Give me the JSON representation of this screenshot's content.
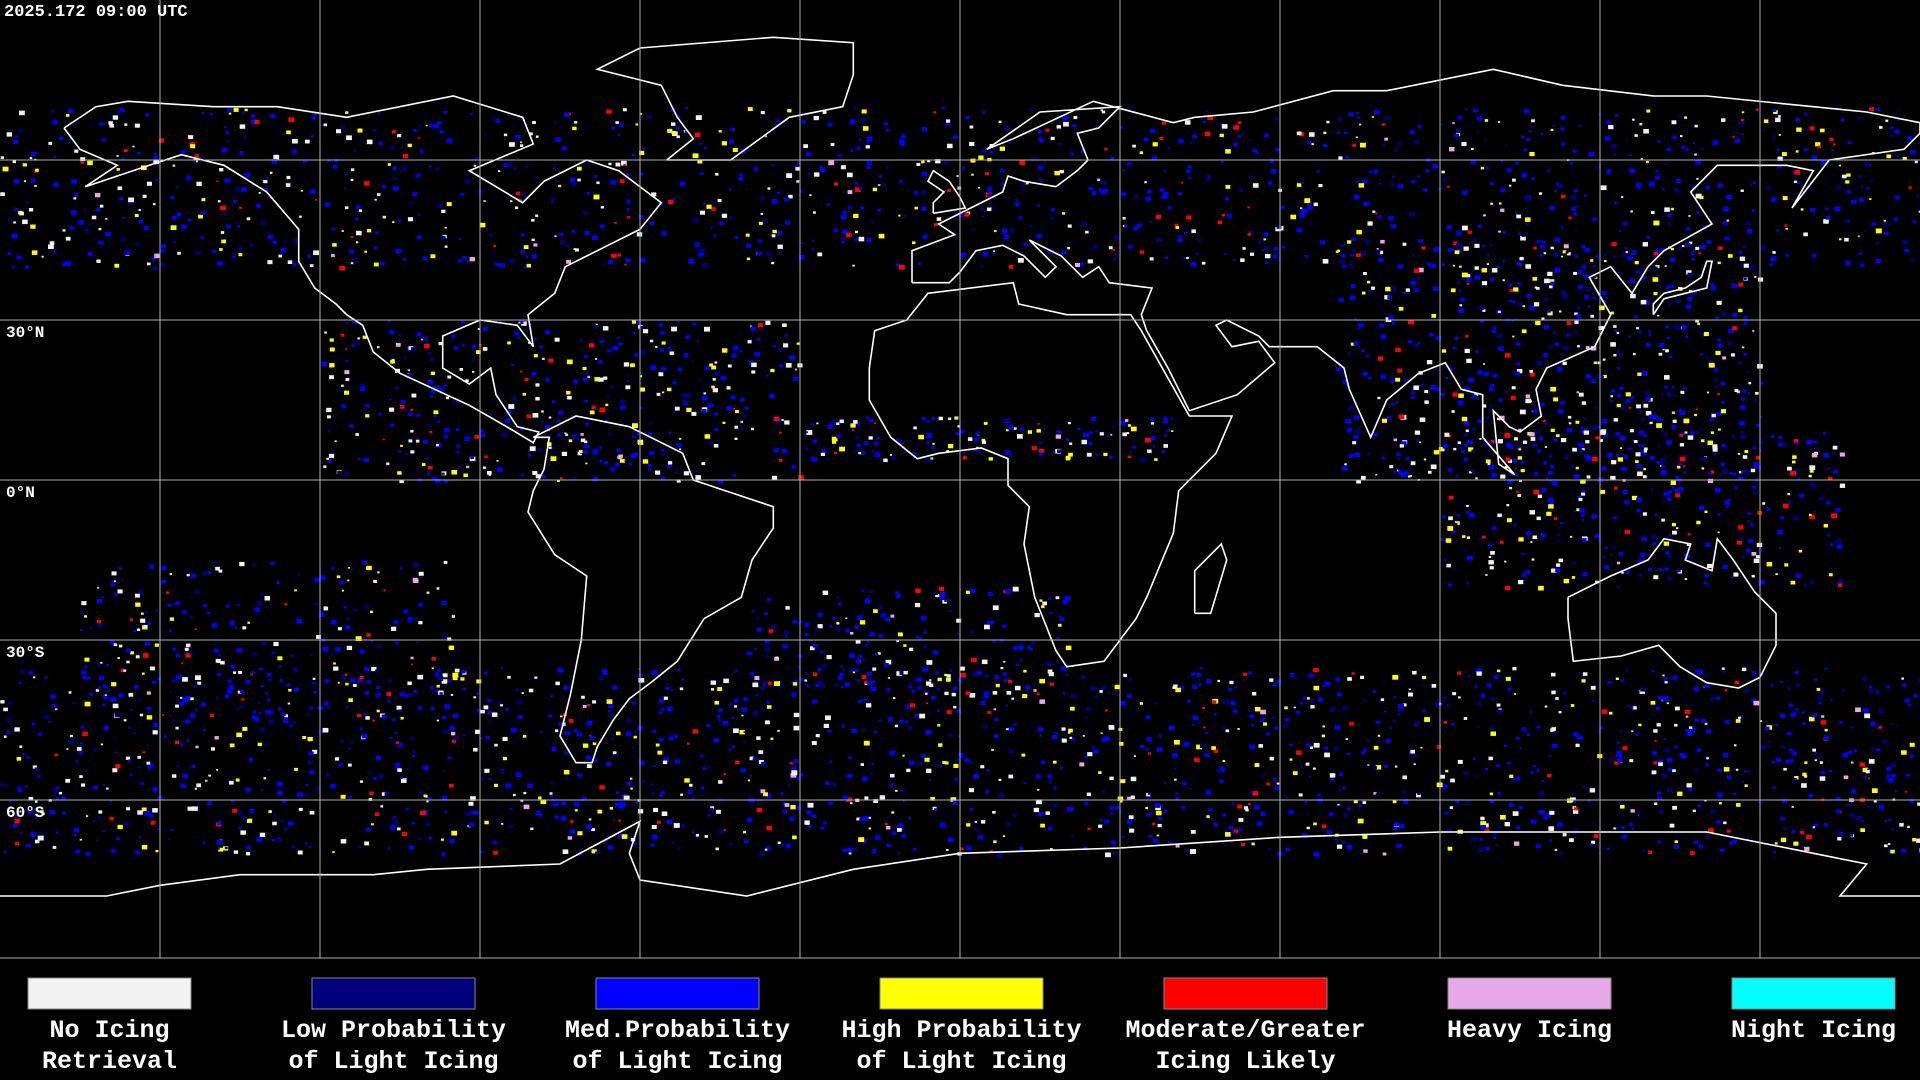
{
  "timestamp": "2025.172 09:00 UTC",
  "lat_labels": [
    "30°N",
    "0°N",
    "30°S",
    "60°S"
  ],
  "legend": [
    {
      "lines": [
        "No Icing",
        "Retrieval"
      ],
      "color": "#f2f2f2"
    },
    {
      "lines": [
        "Low Probability",
        "of Light Icing"
      ],
      "color": "#00007a"
    },
    {
      "lines": [
        "Med.Probability",
        "of Light Icing"
      ],
      "color": "#0000ff"
    },
    {
      "lines": [
        "High Probability",
        "of Light Icing"
      ],
      "color": "#ffff00"
    },
    {
      "lines": [
        "Moderate/Greater",
        "Icing Likely"
      ],
      "color": "#ff0000"
    },
    {
      "lines": [
        "Heavy Icing"
      ],
      "color": "#e6a8e6"
    },
    {
      "lines": [
        "Night Icing"
      ],
      "color": "#00ffff"
    }
  ]
}
